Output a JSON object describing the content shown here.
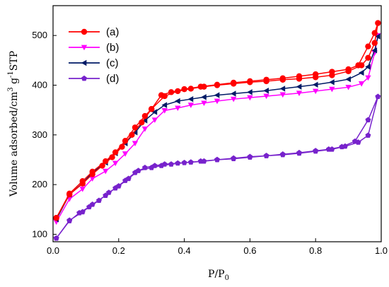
{
  "chart_data": {
    "type": "line",
    "xlabel": "P/P",
    "xlabel_sub": "0",
    "ylabel": "Volume adsorbed/cm",
    "ylabel_sup1": "3",
    "ylabel_mid": " g",
    "ylabel_sup2": "-1",
    "ylabel_end": "STP",
    "xlim": [
      0.0,
      1.0
    ],
    "ylim": [
      85,
      560
    ],
    "xticks": [
      0.0,
      0.2,
      0.4,
      0.6,
      0.8,
      1.0
    ],
    "xtick_labels": [
      "0.0",
      "0.2",
      "0.4",
      "0.6",
      "0.8",
      "1.0"
    ],
    "yticks": [
      100,
      200,
      300,
      400,
      500
    ],
    "ytick_labels": [
      "100",
      "200",
      "300",
      "400",
      "500"
    ],
    "grid": false,
    "legend_position": "top-left",
    "series": [
      {
        "name": "(a)",
        "color": "#ff0000",
        "marker": "circle",
        "x": [
          0.01,
          0.05,
          0.09,
          0.12,
          0.16,
          0.19,
          0.22,
          0.25,
          0.28,
          0.3,
          0.34,
          0.38,
          0.42,
          0.46,
          0.5,
          0.55,
          0.6,
          0.65,
          0.7,
          0.75,
          0.8,
          0.85,
          0.9,
          0.94,
          0.96,
          0.98,
          0.99,
          0.98,
          0.96,
          0.93,
          0.9,
          0.85,
          0.8,
          0.75,
          0.7,
          0.65,
          0.6,
          0.55,
          0.5,
          0.45,
          0.4,
          0.36,
          0.33,
          0.3,
          0.27,
          0.24,
          0.21,
          0.18,
          0.15,
          0.12,
          0.09,
          0.05,
          0.01
        ],
        "y": [
          133,
          182,
          207,
          226,
          247,
          265,
          288,
          315,
          338,
          352,
          378,
          388,
          393,
          397,
          400,
          403,
          406,
          408,
          411,
          413,
          416,
          420,
          428,
          440,
          455,
          485,
          525,
          505,
          478,
          440,
          432,
          427,
          422,
          418,
          414,
          411,
          408,
          405,
          401,
          397,
          392,
          386,
          380,
          352,
          325,
          300,
          276,
          255,
          238,
          221,
          202,
          180,
          133
        ]
      },
      {
        "name": "(b)",
        "color": "#ff00ff",
        "marker": "triangle-down",
        "x": [
          0.01,
          0.05,
          0.09,
          0.12,
          0.16,
          0.19,
          0.22,
          0.25,
          0.28,
          0.31,
          0.34,
          0.38,
          0.42,
          0.46,
          0.5,
          0.55,
          0.6,
          0.65,
          0.7,
          0.75,
          0.8,
          0.85,
          0.9,
          0.94,
          0.96,
          0.98,
          0.99
        ],
        "y": [
          125,
          171,
          191,
          212,
          227,
          243,
          262,
          283,
          312,
          330,
          349,
          354,
          360,
          364,
          368,
          372,
          375,
          378,
          381,
          384,
          388,
          392,
          396,
          403,
          415,
          465,
          500
        ]
      },
      {
        "name": "(c)",
        "color": "#001a66",
        "marker": "triangle-left",
        "x": [
          0.01,
          0.05,
          0.09,
          0.12,
          0.16,
          0.19,
          0.22,
          0.25,
          0.28,
          0.31,
          0.34,
          0.38,
          0.42,
          0.46,
          0.5,
          0.55,
          0.6,
          0.65,
          0.7,
          0.75,
          0.8,
          0.85,
          0.9,
          0.94,
          0.96,
          0.98,
          0.99
        ],
        "y": [
          130,
          180,
          203,
          224,
          244,
          263,
          283,
          305,
          329,
          346,
          360,
          368,
          372,
          376,
          380,
          383,
          386,
          389,
          393,
          397,
          401,
          406,
          412,
          425,
          437,
          470,
          498
        ]
      },
      {
        "name": "(d)",
        "color": "#7722cc",
        "marker": "pentagon",
        "x": [
          0.01,
          0.05,
          0.09,
          0.12,
          0.16,
          0.19,
          0.22,
          0.25,
          0.28,
          0.31,
          0.34,
          0.38,
          0.42,
          0.46,
          0.5,
          0.55,
          0.6,
          0.65,
          0.7,
          0.75,
          0.8,
          0.85,
          0.89,
          0.93,
          0.96,
          0.99,
          0.96,
          0.92,
          0.88,
          0.84,
          0.8,
          0.75,
          0.7,
          0.65,
          0.6,
          0.55,
          0.5,
          0.45,
          0.4,
          0.36,
          0.33,
          0.3,
          0.26,
          0.23,
          0.2,
          0.17,
          0.14,
          0.11,
          0.08,
          0.05,
          0.01
        ],
        "y": [
          92,
          128,
          145,
          160,
          178,
          193,
          208,
          224,
          234,
          238,
          241,
          243,
          245,
          247,
          250,
          252,
          255,
          258,
          260,
          263,
          267,
          271,
          277,
          285,
          299,
          377,
          330,
          287,
          276,
          271,
          268,
          264,
          261,
          258,
          256,
          253,
          250,
          247,
          244,
          241,
          238,
          234,
          228,
          212,
          197,
          184,
          168,
          155,
          143,
          127,
          92
        ]
      }
    ]
  }
}
